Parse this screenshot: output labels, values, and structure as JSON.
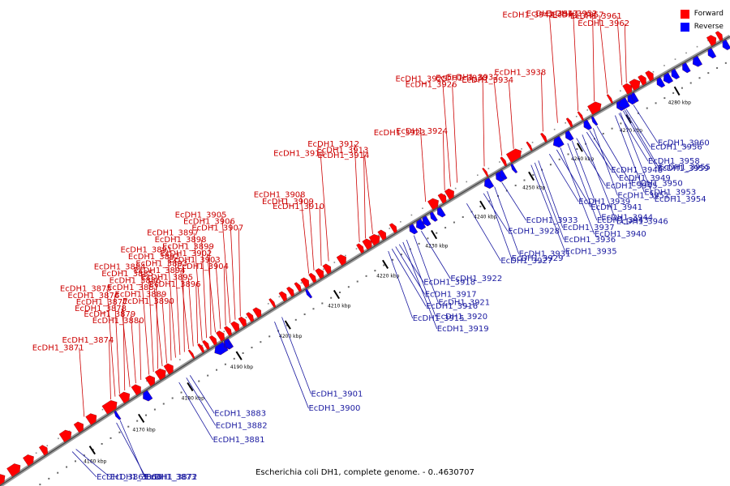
{
  "title": "Escherichia coli DH1, complete genome. - 0..4630707",
  "legend": [
    {
      "label": "Forward",
      "color": "#ff0000"
    },
    {
      "label": "Reverse",
      "color": "#0000ff"
    }
  ],
  "colors": {
    "forward": "#ff0000",
    "reverse": "#0000ff",
    "backbone": "#808080"
  },
  "scale_ticks": [
    "4160 kbp",
    "4170 kbp",
    "4180 kbp",
    "4190 kbp",
    "4200 kbp",
    "4210 kbp",
    "4220 kbp",
    "4230 kbp",
    "4240 kbp",
    "4250 kbp",
    "4260 kbp",
    "4270 kbp",
    "4280 kbp"
  ],
  "forward_labels": [
    {
      "text": "EcDH1_3962",
      "t": 0.866
    },
    {
      "text": "EcDH1_3961",
      "t": 0.86
    },
    {
      "text": "EcDH1_3957",
      "t": 0.84
    },
    {
      "text": "EcDH1_3952",
      "t": 0.822
    },
    {
      "text": "EcDH1_3947",
      "t": 0.8
    },
    {
      "text": "EcDH1_3942",
      "t": 0.772
    },
    {
      "text": "EcDH1_3938",
      "t": 0.752
    },
    {
      "text": "EcDH1_3934",
      "t": 0.712
    },
    {
      "text": "EcDH1_3932",
      "t": 0.696
    },
    {
      "text": "EcDH1_3930",
      "t": 0.672
    },
    {
      "text": "EcDH1_3926",
      "t": 0.635
    },
    {
      "text": "EcDH1_3925",
      "t": 0.626
    },
    {
      "text": "EcDH1_3924",
      "t": 0.618
    },
    {
      "text": "EcDH1_3923",
      "t": 0.592
    },
    {
      "text": "EcDH1_3914",
      "t": 0.52
    },
    {
      "text": "EcDH1_3913",
      "t": 0.51
    },
    {
      "text": "EcDH1_3912",
      "t": 0.502
    },
    {
      "text": "EcDH1_3911",
      "t": 0.46
    },
    {
      "text": "EcDH1_3910",
      "t": 0.45
    },
    {
      "text": "EcDH1_3909",
      "t": 0.44
    },
    {
      "text": "EcDH1_3908",
      "t": 0.433
    },
    {
      "text": "EcDH1_3907",
      "t": 0.34
    },
    {
      "text": "EcDH1_3906",
      "t": 0.333
    },
    {
      "text": "EcDH1_3905",
      "t": 0.326
    },
    {
      "text": "EcDH1_3904",
      "t": 0.32
    },
    {
      "text": "EcDH1_3903",
      "t": 0.313
    },
    {
      "text": "EcDH1_3902",
      "t": 0.306
    },
    {
      "text": "EcDH1_3899",
      "t": 0.3
    },
    {
      "text": "EcDH1_3898",
      "t": 0.294
    },
    {
      "text": "EcDH1_3897",
      "t": 0.288
    },
    {
      "text": "EcDH1_3896",
      "t": 0.282
    },
    {
      "text": "EcDH1_3895",
      "t": 0.276
    },
    {
      "text": "EcDH1_3894",
      "t": 0.27
    },
    {
      "text": "EcDH1_3893",
      "t": 0.264
    },
    {
      "text": "EcDH1_3892",
      "t": 0.258
    },
    {
      "text": "EcDH1_3891",
      "t": 0.252
    },
    {
      "text": "EcDH1_3890",
      "t": 0.246
    },
    {
      "text": "EcDH1_3889",
      "t": 0.24
    },
    {
      "text": "EcDH1_3887",
      "t": 0.234
    },
    {
      "text": "EcDH1_3886",
      "t": 0.228
    },
    {
      "text": "EcDH1_3885",
      "t": 0.222
    },
    {
      "text": "EcDH1_3884",
      "t": 0.216
    },
    {
      "text": "EcDH1_3880",
      "t": 0.205
    },
    {
      "text": "EcDH1_3879",
      "t": 0.198
    },
    {
      "text": "EcDH1_3878",
      "t": 0.19
    },
    {
      "text": "EcDH1_3877",
      "t": 0.183
    },
    {
      "text": "EcDH1_3876",
      "t": 0.176
    },
    {
      "text": "EcDH1_3875",
      "t": 0.17
    },
    {
      "text": "EcDH1_3874",
      "t": 0.164
    },
    {
      "text": "EcDH1_3871",
      "t": 0.128
    }
  ],
  "reverse_labels": [
    {
      "text": "EcDH1_3960",
      "t": 0.86
    },
    {
      "text": "EcDH1_3958",
      "t": 0.84
    },
    {
      "text": "EcDH1_3959",
      "t": 0.846
    },
    {
      "text": "EcDH1_3951",
      "t": 0.805
    },
    {
      "text": "EcDH1_3953",
      "t": 0.835
    },
    {
      "text": "EcDH1_3946",
      "t": 0.79
    },
    {
      "text": "EcDH1_3956",
      "t": 0.85
    },
    {
      "text": "EcDH1_3949",
      "t": 0.8
    },
    {
      "text": "EcDH1_3941",
      "t": 0.755
    },
    {
      "text": "EcDH1_3937",
      "t": 0.73
    },
    {
      "text": "EcDH1_3943",
      "t": 0.77
    },
    {
      "text": "EcDH1_3954",
      "t": 0.842
    },
    {
      "text": "EcDH1_3933",
      "t": 0.68
    },
    {
      "text": "EcDH1_3939",
      "t": 0.745
    },
    {
      "text": "EcDH1_3955",
      "t": 0.848
    },
    {
      "text": "EcDH1_3931",
      "t": 0.67
    },
    {
      "text": "EcDH1_3944",
      "t": 0.776
    },
    {
      "text": "EcDH1_3935",
      "t": 0.72
    },
    {
      "text": "EcDH1_3928",
      "t": 0.655
    },
    {
      "text": "EcDH1_3945",
      "t": 0.782
    },
    {
      "text": "EcDH1_3927",
      "t": 0.632
    },
    {
      "text": "EcDH1_3929",
      "t": 0.66
    },
    {
      "text": "EcDH1_3936",
      "t": 0.725
    },
    {
      "text": "EcDH1_3940",
      "t": 0.76
    },
    {
      "text": "EcDH1_3948",
      "t": 0.796
    },
    {
      "text": "EcDH1_3922",
      "t": 0.57
    },
    {
      "text": "EcDH1_3950",
      "t": 0.81
    },
    {
      "text": "EcDH1_3921",
      "t": 0.56
    },
    {
      "text": "EcDH1_3920",
      "t": 0.55
    },
    {
      "text": "EcDH1_3919",
      "t": 0.545
    },
    {
      "text": "EcDH1_3918",
      "t": 0.54
    },
    {
      "text": "EcDH1_3917",
      "t": 0.535
    },
    {
      "text": "EcDH1_3916",
      "t": 0.53
    },
    {
      "text": "EcDH1_3915",
      "t": 0.525
    },
    {
      "text": "EcDH1_3901",
      "t": 0.38
    },
    {
      "text": "EcDH1_3900",
      "t": 0.37
    },
    {
      "text": "EcDH1_3883",
      "t": 0.255
    },
    {
      "text": "EcDH1_3882",
      "t": 0.25
    },
    {
      "text": "EcDH1_3881",
      "t": 0.24
    },
    {
      "text": "EcDH1_3873",
      "t": 0.16
    },
    {
      "text": "EcDH1_3872",
      "t": 0.155
    },
    {
      "text": "EcDH1_3866",
      "t": 0.1
    },
    {
      "text": "EcDH1_3865",
      "t": 0.095
    }
  ]
}
